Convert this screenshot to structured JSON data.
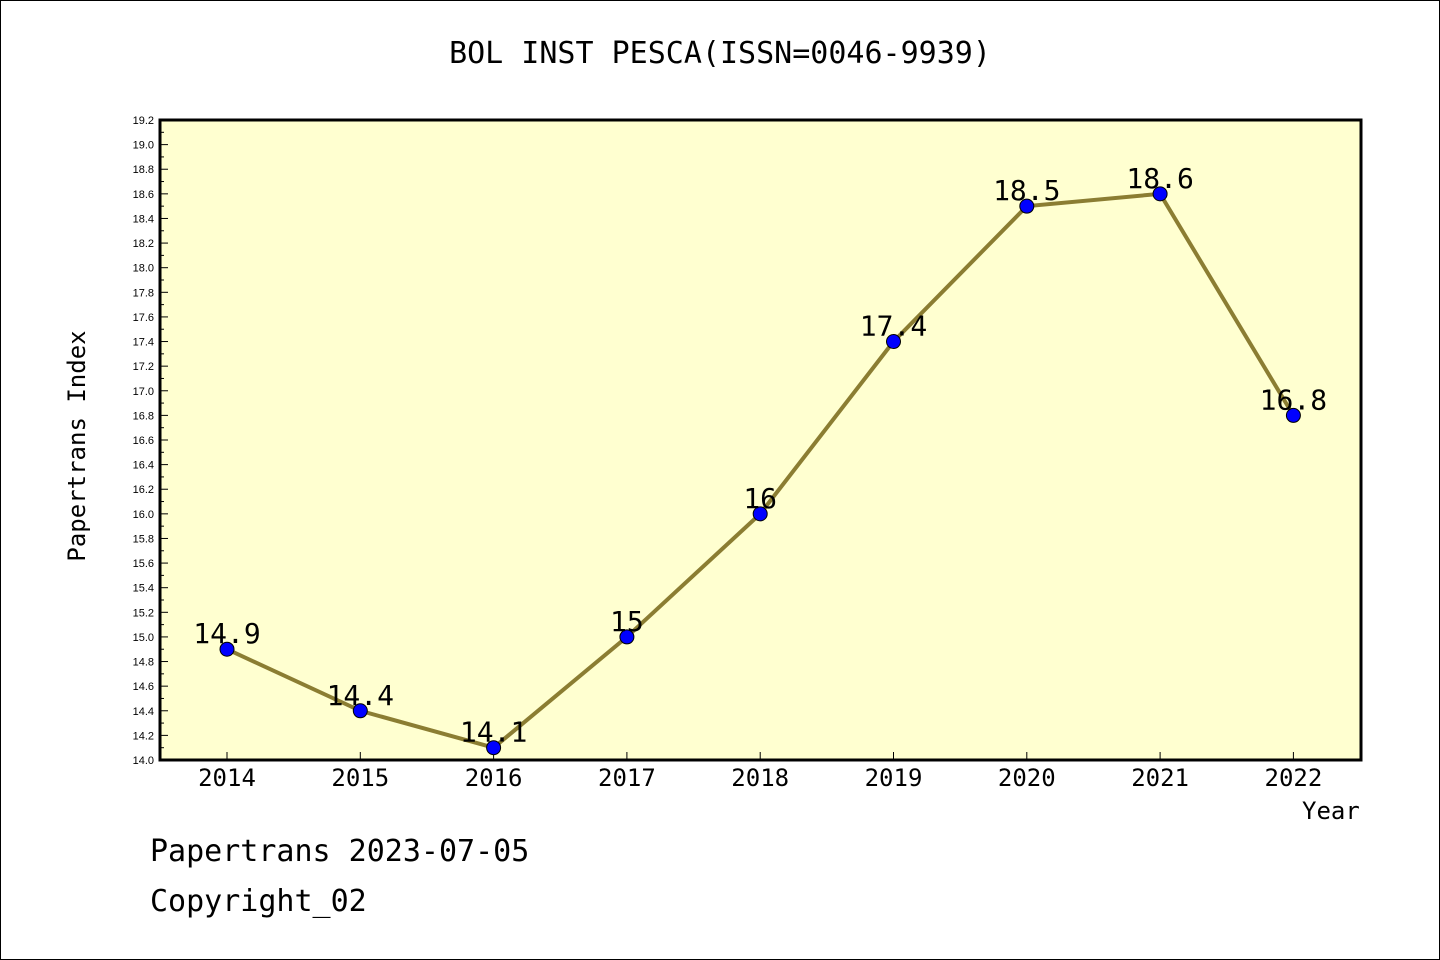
{
  "title": "BOL INST PESCA(ISSN=0046-9939)",
  "footer": {
    "line1": "Papertrans 2023-07-05",
    "line2": "Copyright_02"
  },
  "colors": {
    "plot_background": "#ffffd0",
    "line": "#8b7d32",
    "marker": "#0000ff"
  },
  "chart_data": {
    "type": "line",
    "xlabel": "Year",
    "ylabel": "Papertrans Index",
    "ylim": [
      14.0,
      19.2
    ],
    "ytick_step": 0.2,
    "grid": false,
    "categories": [
      "2014",
      "2015",
      "2016",
      "2017",
      "2018",
      "2019",
      "2020",
      "2021",
      "2022"
    ],
    "series": [
      {
        "values": [
          14.9,
          14.4,
          14.1,
          15,
          16,
          17.4,
          18.5,
          18.6,
          16.8
        ],
        "labels": [
          "14.9",
          "14.4",
          "14.1",
          "15",
          "16",
          "17.4",
          "18.5",
          "18.6",
          "16.8"
        ]
      }
    ]
  }
}
